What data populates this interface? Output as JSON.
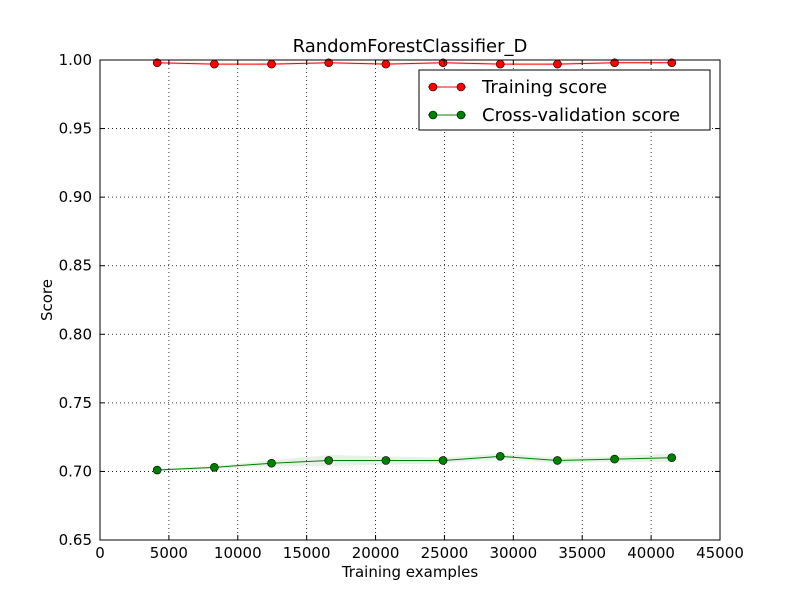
{
  "chart_data": {
    "type": "line",
    "title": "RandomForestClassifier_D",
    "xlabel": "Training examples",
    "ylabel": "Score",
    "xlim": [
      0,
      45000
    ],
    "ylim": [
      0.65,
      1.0
    ],
    "x_ticks": [
      0,
      5000,
      10000,
      15000,
      20000,
      25000,
      30000,
      35000,
      40000,
      45000
    ],
    "x_tick_labels": [
      "0",
      "5000",
      "10000",
      "15000",
      "20000",
      "25000",
      "30000",
      "35000",
      "40000",
      "45000"
    ],
    "y_ticks": [
      0.65,
      0.7,
      0.75,
      0.8,
      0.85,
      0.9,
      0.95,
      1.0
    ],
    "y_tick_labels": [
      "0.65",
      "0.70",
      "0.75",
      "0.80",
      "0.85",
      "0.90",
      "0.95",
      "1.00"
    ],
    "grid": true,
    "legend_position": "top-right",
    "x": [
      4150,
      8300,
      12450,
      16600,
      20750,
      24900,
      29050,
      33200,
      37350,
      41500
    ],
    "series": [
      {
        "name": "Training score",
        "color": "#ff0000",
        "values": [
          0.998,
          0.997,
          0.997,
          0.998,
          0.997,
          0.998,
          0.997,
          0.997,
          0.998,
          0.998
        ],
        "band_lower": [
          0.997,
          0.996,
          0.996,
          0.997,
          0.996,
          0.997,
          0.996,
          0.996,
          0.997,
          0.997
        ],
        "band_upper": [
          0.999,
          0.998,
          0.998,
          0.999,
          0.998,
          0.999,
          0.998,
          0.998,
          0.999,
          0.999
        ]
      },
      {
        "name": "Cross-validation score",
        "color": "#008000",
        "values": [
          0.701,
          0.703,
          0.706,
          0.708,
          0.708,
          0.708,
          0.711,
          0.708,
          0.709,
          0.71
        ],
        "band_lower": [
          0.7,
          0.702,
          0.704,
          0.704,
          0.705,
          0.706,
          0.709,
          0.706,
          0.707,
          0.707
        ],
        "band_upper": [
          0.702,
          0.704,
          0.708,
          0.712,
          0.711,
          0.71,
          0.713,
          0.71,
          0.711,
          0.713
        ]
      }
    ]
  }
}
